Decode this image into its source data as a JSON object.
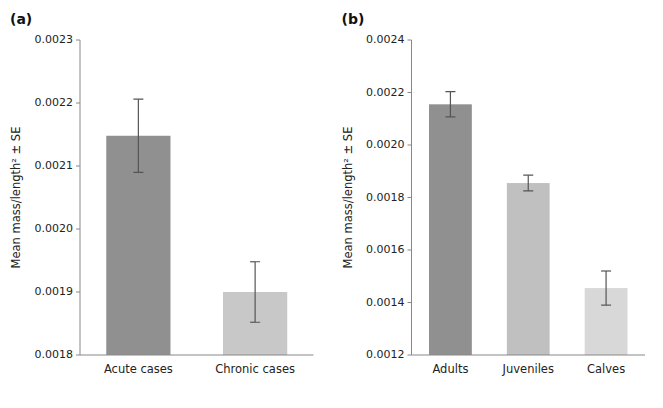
{
  "chart_data": [
    {
      "type": "bar",
      "title": "(a)",
      "ylabel": "Mean mass/length² ± SE",
      "categories": [
        "Acute cases",
        "Chronic cases"
      ],
      "values": [
        0.002148,
        0.0019
      ],
      "errors_up": [
        5.8e-05,
        4.8e-05
      ],
      "errors_down": [
        5.8e-05,
        4.8e-05
      ],
      "colors": [
        "#909090",
        "#c8c8c8"
      ],
      "ylim": [
        0.0018,
        0.0023
      ],
      "yticks": [
        0.0018,
        0.0019,
        {
          "value": 0.002,
          "label": "0.0020"
        },
        0.0021,
        0.0022,
        0.0023
      ],
      "grid": false
    },
    {
      "type": "bar",
      "title": "(b)",
      "ylabel": "Mean mass/length² ± SE",
      "categories": [
        "Adults",
        "Juveniles",
        "Calves"
      ],
      "values": [
        0.002155,
        0.001855,
        0.001455
      ],
      "errors_up": [
        4.8e-05,
        3e-05,
        6.5e-05
      ],
      "errors_down": [
        4.8e-05,
        3e-05,
        6.5e-05
      ],
      "colors": [
        "#909090",
        "#c0c0c0",
        "#d8d8d8"
      ],
      "ylim": [
        0.0012,
        0.0024
      ],
      "yticks": [
        0.0012,
        0.0014,
        0.0016,
        0.0018,
        {
          "value": 0.002,
          "label": "0.0020"
        },
        0.0022,
        0.0024
      ],
      "grid": false
    }
  ]
}
